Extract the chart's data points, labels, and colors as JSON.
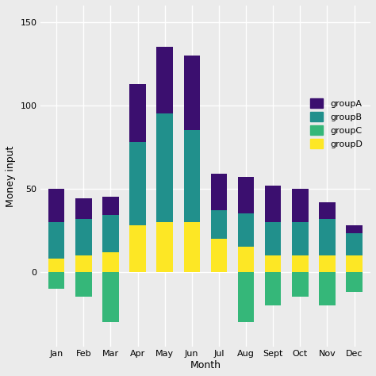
{
  "months": [
    "Jan",
    "Feb",
    "Mar",
    "Apr",
    "May",
    "Jun",
    "Jul",
    "Aug",
    "Sept",
    "Oct",
    "Nov",
    "Dec"
  ],
  "groupA": [
    20,
    12,
    11,
    35,
    40,
    45,
    22,
    22,
    22,
    20,
    10,
    5
  ],
  "groupB": [
    22,
    22,
    22,
    50,
    65,
    55,
    17,
    20,
    20,
    20,
    22,
    13
  ],
  "groupC": [
    -10,
    -15,
    -30,
    0,
    0,
    0,
    0,
    -30,
    -20,
    -15,
    -20,
    -12
  ],
  "groupD": [
    8,
    10,
    12,
    28,
    30,
    30,
    20,
    15,
    10,
    10,
    10,
    10
  ],
  "colors": {
    "groupA": "#3B0F6F",
    "groupB": "#21908C",
    "groupC": "#35B779",
    "groupD": "#FDE725"
  },
  "xlabel": "Month",
  "ylabel": "Money input",
  "background_color": "#EBEBEB",
  "grid_color": "#FFFFFF"
}
